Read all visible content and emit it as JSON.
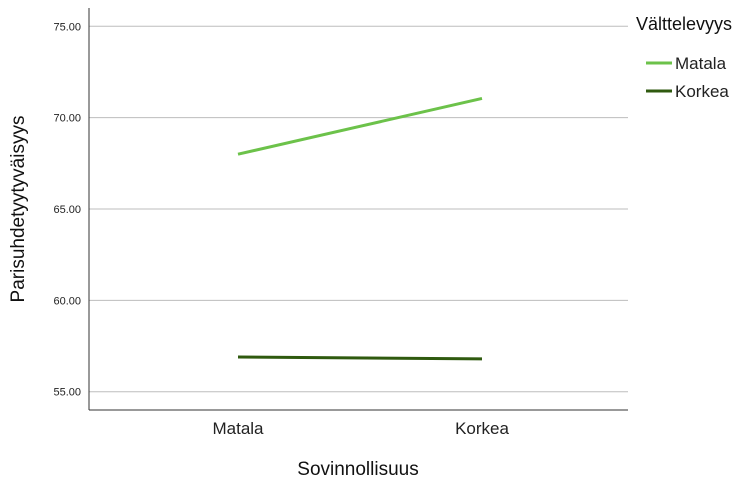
{
  "chart_data": {
    "type": "line",
    "categories": [
      "Matala",
      "Korkea"
    ],
    "xlabel": "Sovinnollisuus",
    "ylabel": "Parisuhdetyytyväisyys",
    "ylim": [
      54.0,
      76.0
    ],
    "yticks": [
      "55.00",
      "60.00",
      "65.00",
      "70.00",
      "75.00"
    ],
    "grid": true,
    "legend": {
      "title": "Välttelevyys",
      "placement": "top-right"
    },
    "series": [
      {
        "name": "Matala",
        "values": [
          68.0,
          71.05
        ],
        "color": "#6cc24a"
      },
      {
        "name": "Korkea",
        "values": [
          56.9,
          56.8
        ],
        "color": "#2f5a0f"
      }
    ]
  }
}
